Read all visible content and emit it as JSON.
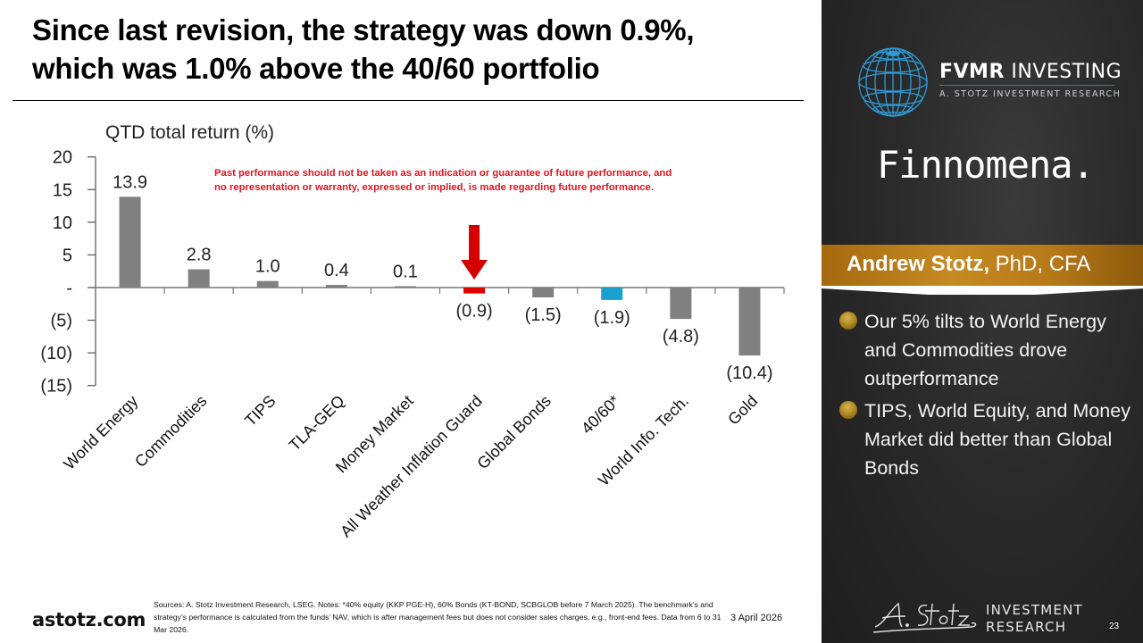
{
  "slide": {
    "title_line1": "Since last revision, the strategy was down 0.9%,",
    "title_line2": "which was 1.0% above the 40/60 portfolio",
    "disclaimer_line1": "Past performance should not be taken as an indication or guarantee of future performance, and",
    "disclaimer_line2": "no representation or warranty, expressed or implied, is made regarding future performance.",
    "website": "astotz.com",
    "sources": "Sources: A. Stotz Investment Research, LSEG. Notes: *40% equity (KKP PGE-H), 60% Bonds (KT-BOND, SCBGLOB before 7 March 2025). The benchmark’s and strategy’s performance is calculated from the funds’ NAV, which is after management fees but does not consider sales charges, e.g., front-end fees. Data from 6 to 31 Mar 2026.",
    "date": "3 April 2026",
    "page_number": "23"
  },
  "sidebar": {
    "brand_bold": "FVMR",
    "brand_rest": " INVESTING",
    "brand_sub": "A. STOTZ INVESTMENT RESEARCH",
    "partner": "Finnomena.",
    "presenter_name": "Andrew Stotz,",
    "presenter_creds": " PhD, CFA",
    "bullets": [
      "Our 5% tilts to World Energy and Commodities drove outperformance",
      "TIPS, World Equity, and Money Market did better than Global Bonds"
    ],
    "footer_line1": "INVESTMENT",
    "footer_line2": "RESEARCH",
    "signature": "A. Stotz"
  },
  "colors": {
    "bar_default": "#808080",
    "bar_strategy": "#e00000",
    "bar_benchmark": "#1ba1d0",
    "arrow": "#d40000",
    "disclaimer": "#e0141e",
    "banner": "#b87a19",
    "globe": "#2e9bd6"
  },
  "chart_data": {
    "type": "bar",
    "title": "QTD total return (%)",
    "xlabel": "",
    "ylabel": "QTD total return (%)",
    "ylim": [
      -15,
      20
    ],
    "yticks": [
      20,
      15,
      10,
      5,
      0,
      -5,
      -10,
      -15
    ],
    "ytick_labels": [
      "20",
      "15",
      "10",
      "5",
      "-",
      "(5)",
      "(10)",
      "(15)"
    ],
    "categories": [
      "World Energy",
      "Commodities",
      "TIPS",
      "TLA-GEQ",
      "Money Market",
      "All Weather Inflation Guard",
      "Global Bonds",
      "40/60*",
      "World Info. Tech.",
      "Gold"
    ],
    "values": [
      13.9,
      2.8,
      1.0,
      0.4,
      0.1,
      -0.9,
      -1.5,
      -1.9,
      -4.8,
      -10.4
    ],
    "data_labels": [
      "13.9",
      "2.8",
      "1.0",
      "0.4",
      "0.1",
      "(0.9)",
      "(1.5)",
      "(1.9)",
      "(4.8)",
      "(10.4)"
    ],
    "highlight": {
      "All Weather Inflation Guard": "strategy",
      "40/60*": "benchmark"
    },
    "annotation": "down-arrow pointing at All Weather Inflation Guard",
    "grid": false,
    "legend": "none"
  }
}
